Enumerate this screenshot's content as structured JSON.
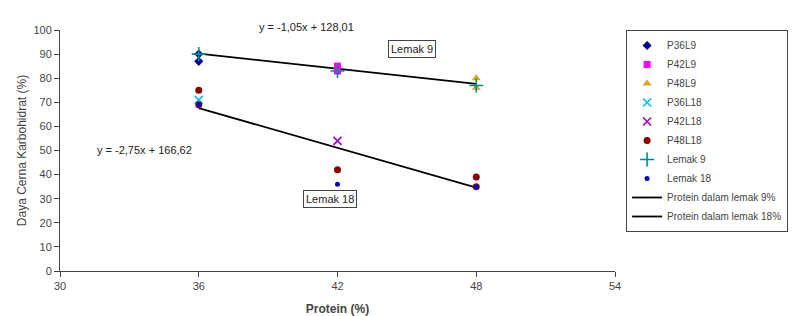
{
  "chart_data": {
    "type": "scatter",
    "xlabel": "Protein (%)",
    "ylabel": "Daya Cerna Karbohidrat (%)",
    "xlim": [
      30,
      54
    ],
    "ylim": [
      0,
      100
    ],
    "xticks": [
      30,
      36,
      42,
      48,
      54
    ],
    "yticks": [
      0,
      10,
      20,
      30,
      40,
      50,
      60,
      70,
      80,
      90,
      100
    ],
    "grid": false,
    "legend": "right",
    "series": [
      {
        "name": "P36L9",
        "color": "#00008B",
        "marker": "diamond",
        "x": [
          36,
          36
        ],
        "values": [
          87,
          90
        ]
      },
      {
        "name": "P42L9",
        "color": "#FF00FF",
        "marker": "square",
        "x": [
          42,
          42
        ],
        "values": [
          85,
          83
        ]
      },
      {
        "name": "P48L9",
        "color": "#DAA520",
        "marker": "triangle-up",
        "x": [
          48,
          48
        ],
        "values": [
          80,
          76
        ]
      },
      {
        "name": "P36L18",
        "color": "#00BFFF",
        "marker": "x",
        "x": [
          36
        ],
        "values": [
          71
        ]
      },
      {
        "name": "P42L18",
        "color": "#9900CC",
        "marker": "x",
        "x": [
          42
        ],
        "values": [
          54
        ]
      },
      {
        "name": "P48L18",
        "color": "#8B0000",
        "marker": "circle",
        "x": [
          36,
          36,
          42,
          48,
          48
        ],
        "values": [
          75,
          69,
          42,
          39,
          35
        ]
      },
      {
        "name": "Lemak 9",
        "color": "#008B8B",
        "marker": "plus",
        "x": [
          36,
          42,
          48
        ],
        "values": [
          90,
          83,
          77
        ]
      },
      {
        "name": "Lemak 18",
        "color": "#0000CD",
        "marker": "point",
        "x": [
          36,
          42,
          48
        ],
        "values": [
          69,
          36,
          35
        ]
      },
      {
        "name": "Protein dalam lemak 9%",
        "type": "line",
        "color": "black",
        "x": [
          36,
          48
        ],
        "values": [
          90.21,
          77.61
        ]
      },
      {
        "name": "Protein dalam lemak 18%",
        "type": "line",
        "color": "black",
        "x": [
          36,
          48
        ],
        "values": [
          67.62,
          34.62
        ]
      }
    ],
    "annotations": [
      {
        "text": "y = -1,05x + 128,01",
        "x": 38.5,
        "y": 98
      },
      {
        "text": "y = -2,75x + 166,62",
        "x": 31.5,
        "y": 47
      },
      {
        "text": "Lemak 9",
        "x": 44.2,
        "y": 92
      },
      {
        "text": "Lemak 18",
        "x": 40.5,
        "y": 30
      }
    ]
  }
}
